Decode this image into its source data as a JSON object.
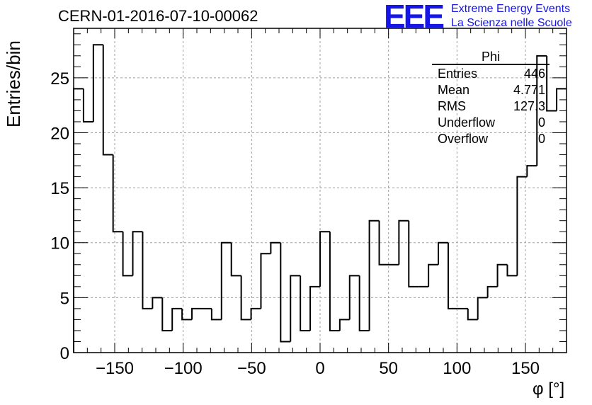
{
  "title": "CERN-01-2016-07-10-00062",
  "logo": {
    "mark": "EEE",
    "line1": "Extreme Energy Events",
    "line2": "La Scienza nelle Scuole",
    "color": "#1515e6"
  },
  "stats": {
    "title": "Phi",
    "rows": [
      {
        "label": "Entries",
        "value": "446"
      },
      {
        "label": "Mean",
        "value": "4.771"
      },
      {
        "label": "RMS",
        "value": "127.3"
      },
      {
        "label": "Underflow",
        "value": "0"
      },
      {
        "label": "Overflow",
        "value": "0"
      }
    ]
  },
  "chart_data": {
    "type": "bar",
    "histogram": true,
    "title": "CERN-01-2016-07-10-00062",
    "xlabel": "φ [°]",
    "ylabel": "Entries/bin",
    "xlim": [
      -180,
      180
    ],
    "ylim": [
      0,
      29.5
    ],
    "bin_width": 7.2,
    "xticks": [
      -150,
      -100,
      -50,
      0,
      50,
      100,
      150
    ],
    "xtick_labels": [
      "−150",
      "−100",
      "−50",
      "0",
      "50",
      "100",
      "150"
    ],
    "yticks": [
      0,
      5,
      10,
      15,
      20,
      25
    ],
    "ytick_labels": [
      "0",
      "5",
      "10",
      "15",
      "20",
      "25"
    ],
    "grid": true,
    "values": [
      24,
      21,
      28,
      18,
      11,
      7,
      11,
      4,
      5,
      2,
      4,
      3,
      4,
      4,
      3,
      10,
      7,
      3,
      4,
      9,
      10,
      1,
      7,
      2,
      6,
      11,
      2,
      3,
      7,
      2,
      12,
      8,
      8,
      12,
      6,
      6,
      8,
      10,
      4,
      4,
      3,
      5,
      6,
      8,
      7,
      16,
      17,
      27,
      22,
      24
    ],
    "line_color": "#000000"
  }
}
